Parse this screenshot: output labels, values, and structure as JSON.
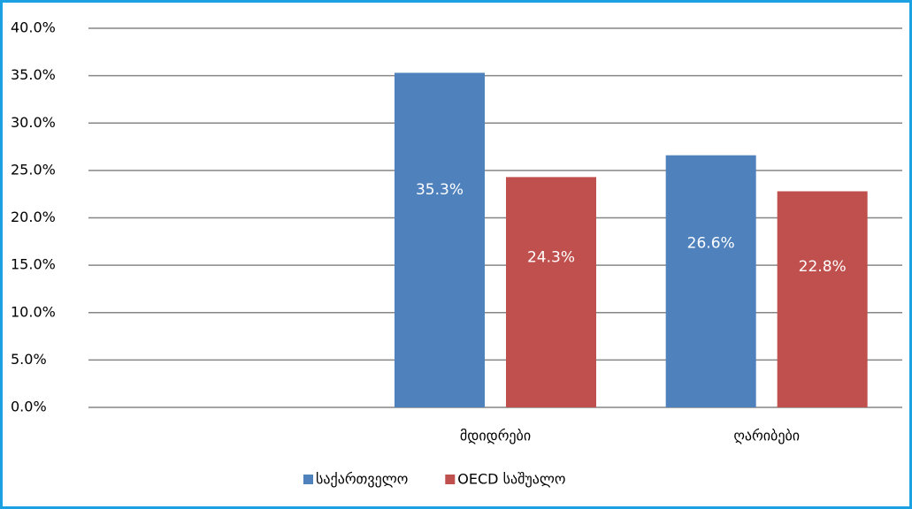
{
  "chart_data": {
    "type": "bar",
    "categories": [
      null,
      "მდიდრები",
      "ღარიბები"
    ],
    "series": [
      {
        "name": "საქართველო",
        "color": "#4f81bd",
        "values": [
          null,
          35.3,
          26.6
        ],
        "value_labels": [
          null,
          "35.3%",
          "26.6%"
        ]
      },
      {
        "name": "OECD საშუალო",
        "color": "#c0504d",
        "values": [
          null,
          24.3,
          22.8
        ],
        "value_labels": [
          null,
          "24.3%",
          "22.8%"
        ]
      }
    ],
    "ylim": [
      0,
      40
    ],
    "yticks": [
      {
        "value": 0,
        "label": "0.0%"
      },
      {
        "value": 5,
        "label": "5.0%"
      },
      {
        "value": 10,
        "label": "10.0%"
      },
      {
        "value": 15,
        "label": "15.0%"
      },
      {
        "value": 20,
        "label": "20.0%"
      },
      {
        "value": 25,
        "label": "25.0%"
      },
      {
        "value": 30,
        "label": "30.0%"
      },
      {
        "value": 35,
        "label": "35.0%"
      },
      {
        "value": 40,
        "label": "40.0%"
      }
    ],
    "grid": true,
    "legend": "bottom"
  }
}
